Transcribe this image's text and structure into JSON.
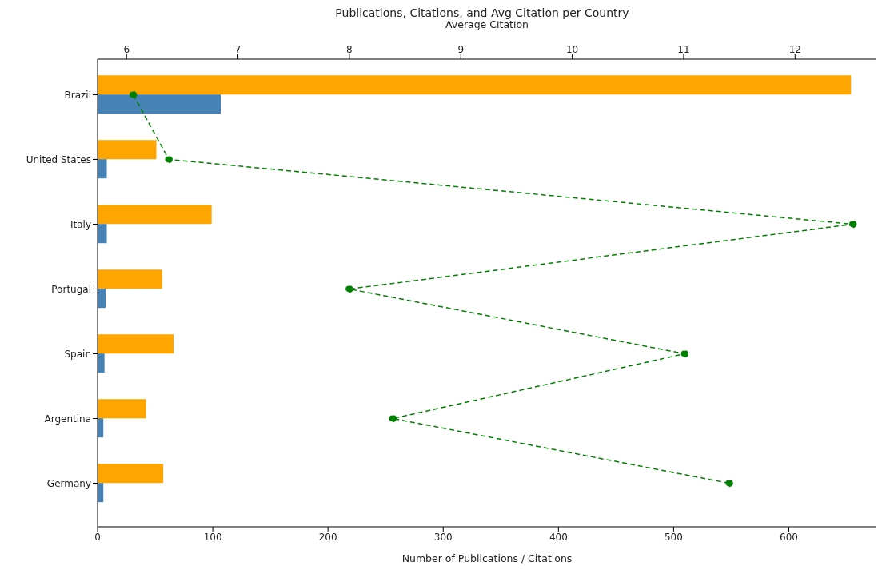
{
  "chart_data": {
    "type": "bar",
    "orientation": "horizontal",
    "title": "Publications, Citations, and Avg Citation per Country",
    "xlabel": "Number of Publications / Citations",
    "x2label": "Average Citation",
    "categories": [
      "Brazil",
      "United States",
      "Italy",
      "Portugal",
      "Spain",
      "Argentina",
      "Germany"
    ],
    "series": [
      {
        "color": "#ffa500",
        "values": [
          654,
          51,
          99,
          56,
          66,
          42,
          57
        ]
      },
      {
        "color": "#4682b4",
        "values": [
          107,
          8,
          8,
          7,
          6,
          5,
          5
        ]
      },
      {
        "type": "line",
        "axis": "x2",
        "color": "#008000",
        "marker": "circle",
        "line_style": "dashed",
        "values": [
          6.06,
          6.38,
          12.52,
          8.0,
          11.01,
          8.39,
          11.41
        ]
      }
    ],
    "xlim": [
      0,
      676
    ],
    "xticks": [
      0,
      100,
      200,
      300,
      400,
      500,
      600
    ],
    "x2lim": [
      5.74,
      12.73
    ],
    "x2ticks": [
      6,
      7,
      8,
      9,
      10,
      11,
      12
    ]
  }
}
